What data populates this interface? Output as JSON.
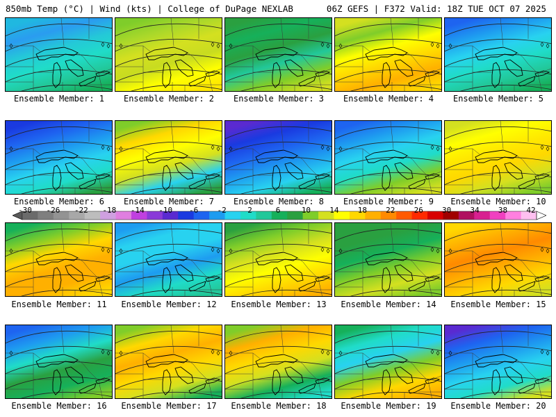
{
  "header": {
    "left": "850mb Temp (°C) | Wind (kts) | College of DuPage NEXLAB",
    "right": "06Z GEFS | F372 Valid: 18Z TUE OCT 07 2025"
  },
  "colorbar": {
    "ticks": [
      "-30",
      "-26",
      "-22",
      "-18",
      "-14",
      "-10",
      "-6",
      "-2",
      "2",
      "6",
      "10",
      "14",
      "18",
      "22",
      "26",
      "30",
      "34",
      "38",
      "42"
    ],
    "colors": [
      "#6b6b6b",
      "#7f7f7f",
      "#939393",
      "#a8a8a8",
      "#bdbdbd",
      "#cfa0e0",
      "#e07fe0",
      "#c040e0",
      "#8a3ad8",
      "#5a2ad0",
      "#1a3ae0",
      "#1e64f0",
      "#1e9cf0",
      "#28d2f0",
      "#20dcc8",
      "#22c89a",
      "#16b05a",
      "#2aa040",
      "#7fcd2a",
      "#d4e020",
      "#ffff00",
      "#ffd800",
      "#ffb000",
      "#ff8a00",
      "#ff5a00",
      "#ff2a00",
      "#d80000",
      "#a00000",
      "#b01060",
      "#d82090",
      "#f040c0",
      "#ff80e0",
      "#ffc0f0"
    ]
  },
  "members": [
    {
      "label": "Ensemble Member: 1",
      "colors": [
        "#20b8e0",
        "#2a9cf0",
        "#24c8d8",
        "#20dcc8",
        "#22c89a",
        "#16b05a"
      ]
    },
    {
      "label": "Ensemble Member: 2",
      "colors": [
        "#7fcd2a",
        "#aad82a",
        "#d4e020",
        "#c8dc20",
        "#ffff00",
        "#ffe800"
      ]
    },
    {
      "label": "Ensemble Member: 3",
      "colors": [
        "#2aa040",
        "#16b05a",
        "#2aa040",
        "#22c89a",
        "#7fcd2a",
        "#d4e020"
      ]
    },
    {
      "label": "Ensemble Member: 4",
      "colors": [
        "#d4e020",
        "#7fcd2a",
        "#ffff00",
        "#ffd800",
        "#ffb000",
        "#ffd800"
      ]
    },
    {
      "label": "Ensemble Member: 5",
      "colors": [
        "#1e64f0",
        "#1e9cf0",
        "#28d2f0",
        "#20dcc8",
        "#22c89a",
        "#16b05a"
      ]
    },
    {
      "label": "Ensemble Member: 6",
      "colors": [
        "#1a3ae0",
        "#1e64f0",
        "#1e9cf0",
        "#28d2f0",
        "#20dcc8",
        "#2aa040"
      ]
    },
    {
      "label": "Ensemble Member: 7",
      "colors": [
        "#7fcd2a",
        "#ffd800",
        "#ffff00",
        "#d4e020",
        "#28d2f0",
        "#2aa040"
      ]
    },
    {
      "label": "Ensemble Member: 8",
      "colors": [
        "#5a2ad0",
        "#1a3ae0",
        "#1e64f0",
        "#1e9cf0",
        "#28d2f0",
        "#16b05a"
      ]
    },
    {
      "label": "Ensemble Member: 9",
      "colors": [
        "#1e64f0",
        "#1e9cf0",
        "#28d2f0",
        "#20dcc8",
        "#7fcd2a",
        "#d4e020"
      ]
    },
    {
      "label": "Ensemble Member: 10",
      "colors": [
        "#d4e020",
        "#ffff00",
        "#ffe800",
        "#ffd800",
        "#d4e020",
        "#7fcd2a"
      ]
    },
    {
      "label": "Ensemble Member: 11",
      "colors": [
        "#16b05a",
        "#7fcd2a",
        "#ffd800",
        "#ffb000",
        "#ffb000",
        "#ffd800"
      ]
    },
    {
      "label": "Ensemble Member: 12",
      "colors": [
        "#1e9cf0",
        "#28d2f0",
        "#28d2f0",
        "#1e9cf0",
        "#20dcc8",
        "#22c89a"
      ]
    },
    {
      "label": "Ensemble Member: 13",
      "colors": [
        "#2aa040",
        "#7fcd2a",
        "#d4e020",
        "#ffff00",
        "#ffd800",
        "#ffb000"
      ]
    },
    {
      "label": "Ensemble Member: 14",
      "colors": [
        "#2aa040",
        "#2aa040",
        "#16b05a",
        "#7fcd2a",
        "#d4e020",
        "#7fcd2a"
      ]
    },
    {
      "label": "Ensemble Member: 15",
      "colors": [
        "#ffd800",
        "#ffb000",
        "#ff8a00",
        "#ffb000",
        "#ffd800",
        "#d4e020"
      ]
    },
    {
      "label": "Ensemble Member: 16",
      "colors": [
        "#1e64f0",
        "#1e9cf0",
        "#20dcc8",
        "#2aa040",
        "#16b05a",
        "#7fcd2a"
      ]
    },
    {
      "label": "Ensemble Member: 17",
      "colors": [
        "#7fcd2a",
        "#ffd800",
        "#ffb000",
        "#ffd800",
        "#d4e020",
        "#16b05a"
      ]
    },
    {
      "label": "Ensemble Member: 18",
      "colors": [
        "#7fcd2a",
        "#ffb000",
        "#ffd800",
        "#d4e020",
        "#16b05a",
        "#20dcc8"
      ]
    },
    {
      "label": "Ensemble Member: 19",
      "colors": [
        "#16b05a",
        "#20dcc8",
        "#28d2f0",
        "#7fcd2a",
        "#ffd800",
        "#ffb000"
      ]
    },
    {
      "label": "Ensemble Member: 20",
      "colors": [
        "#5a2ad0",
        "#1e64f0",
        "#1e9cf0",
        "#28d2f0",
        "#20dcc8",
        "#d4e020"
      ]
    }
  ]
}
